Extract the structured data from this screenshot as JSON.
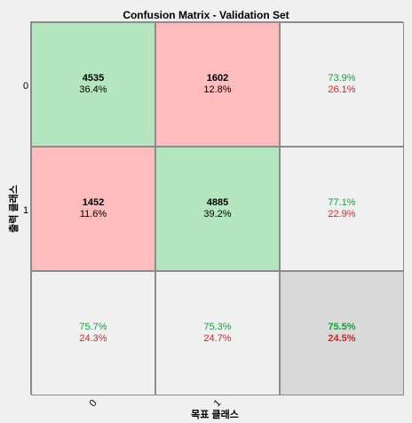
{
  "chart_data": {
    "type": "heatmap",
    "title": "Confusion Matrix - Validation Set",
    "ylabel": "출력 클래스",
    "xlabel": "목표 클래스",
    "classes": [
      "0",
      "1"
    ],
    "cells": [
      [
        {
          "count": "4535",
          "pct": "36.4%"
        },
        {
          "count": "1602",
          "pct": "12.8%"
        }
      ],
      [
        {
          "count": "1452",
          "pct": "11.6%"
        },
        {
          "count": "4885",
          "pct": "39.2%"
        }
      ]
    ],
    "row_summary": [
      {
        "correct": "73.9%",
        "wrong": "26.1%"
      },
      {
        "correct": "77.1%",
        "wrong": "22.9%"
      }
    ],
    "col_summary": [
      {
        "correct": "75.7%",
        "wrong": "24.3%"
      },
      {
        "correct": "75.3%",
        "wrong": "24.7%"
      }
    ],
    "overall": {
      "correct": "75.5%",
      "wrong": "24.5%"
    },
    "colors": {
      "correct_fill": "#b3e6be",
      "wrong_fill": "#ffbcbc",
      "summary_fill": "#f0f0f0",
      "overall_fill": "#d9d9d9",
      "correct_text": "#12a33a",
      "wrong_text": "#e02020"
    }
  }
}
